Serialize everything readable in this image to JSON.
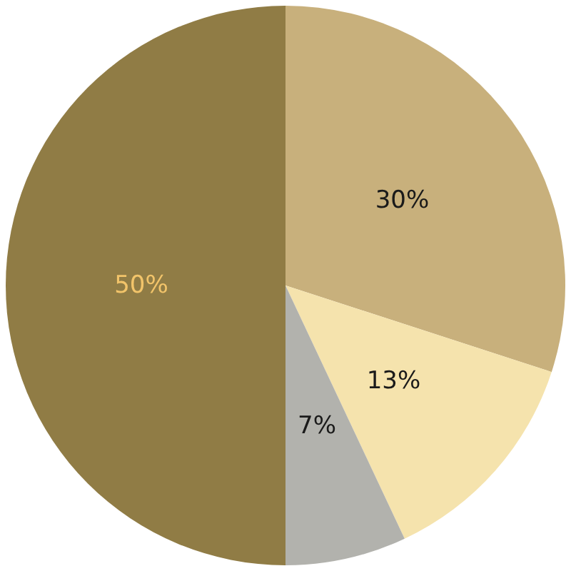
{
  "chart_data": {
    "type": "pie",
    "categories": [
      null,
      null,
      null,
      null
    ],
    "values": [
      30,
      13,
      7,
      50
    ],
    "colors": [
      "#c8b07c",
      "#f5e3ad",
      "#b2b2ad",
      "#907c45"
    ],
    "value_labels": [
      "30%",
      "13%",
      "7%",
      "50%"
    ]
  }
}
